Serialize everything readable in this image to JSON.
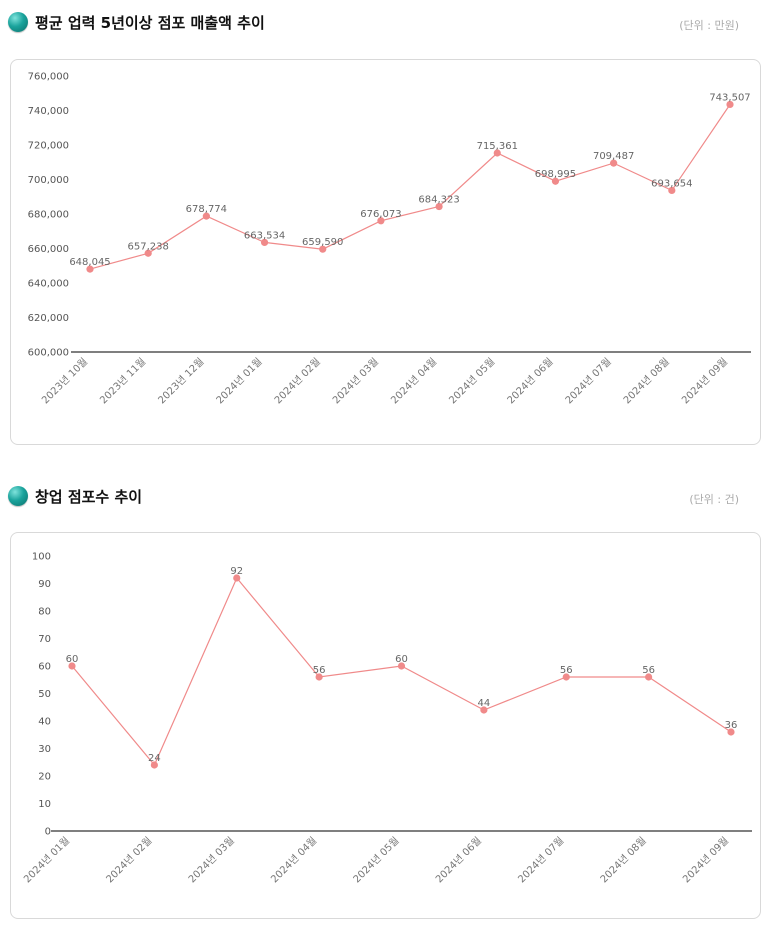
{
  "charts": [
    {
      "title": "평균 업력 5년이상 점포 매출액 추이",
      "unit": "(단위 : 만원)",
      "chart_data": {
        "type": "line",
        "title": "평균 업력 5년이상 점포 매출액 추이",
        "xlabel": "",
        "ylabel": "",
        "ylim": [
          600000,
          760000
        ],
        "yticks": [
          "600,000",
          "620,000",
          "640,000",
          "660,000",
          "680,000",
          "700,000",
          "720,000",
          "740,000",
          "760,000"
        ],
        "categories": [
          "2023년 10월",
          "2023년 11월",
          "2023년 12월",
          "2024년 01월",
          "2024년 02월",
          "2024년 03월",
          "2024년 04월",
          "2024년 05월",
          "2024년 06월",
          "2024년 07월",
          "2024년 08월",
          "2024년 09월"
        ],
        "values": [
          648045,
          657238,
          678774,
          663534,
          659590,
          676073,
          684323,
          715361,
          698995,
          709487,
          693654,
          743507
        ],
        "labels": [
          "648,045",
          "657,238",
          "678,774",
          "663,534",
          "659,590",
          "676,073",
          "684,323",
          "715,361",
          "698,995",
          "709,487",
          "693,654",
          "743,507"
        ],
        "color": "#f08a8a"
      }
    },
    {
      "title": "창업 점포수 추이",
      "unit": "(단위 : 건)",
      "chart_data": {
        "type": "line",
        "title": "창업 점포수 추이",
        "xlabel": "",
        "ylabel": "",
        "ylim": [
          0,
          100
        ],
        "yticks": [
          "0",
          "10",
          "20",
          "30",
          "40",
          "50",
          "60",
          "70",
          "80",
          "90",
          "100"
        ],
        "categories": [
          "2024년 01월",
          "2024년 02월",
          "2024년 03월",
          "2024년 04월",
          "2024년 05월",
          "2024년 06월",
          "2024년 07월",
          "2024년 08월",
          "2024년 09월"
        ],
        "values": [
          60,
          24,
          92,
          56,
          60,
          44,
          56,
          56,
          36
        ],
        "labels": [
          "60",
          "24",
          "92",
          "56",
          "60",
          "44",
          "56",
          "56",
          "36"
        ],
        "color": "#f08a8a"
      }
    }
  ]
}
